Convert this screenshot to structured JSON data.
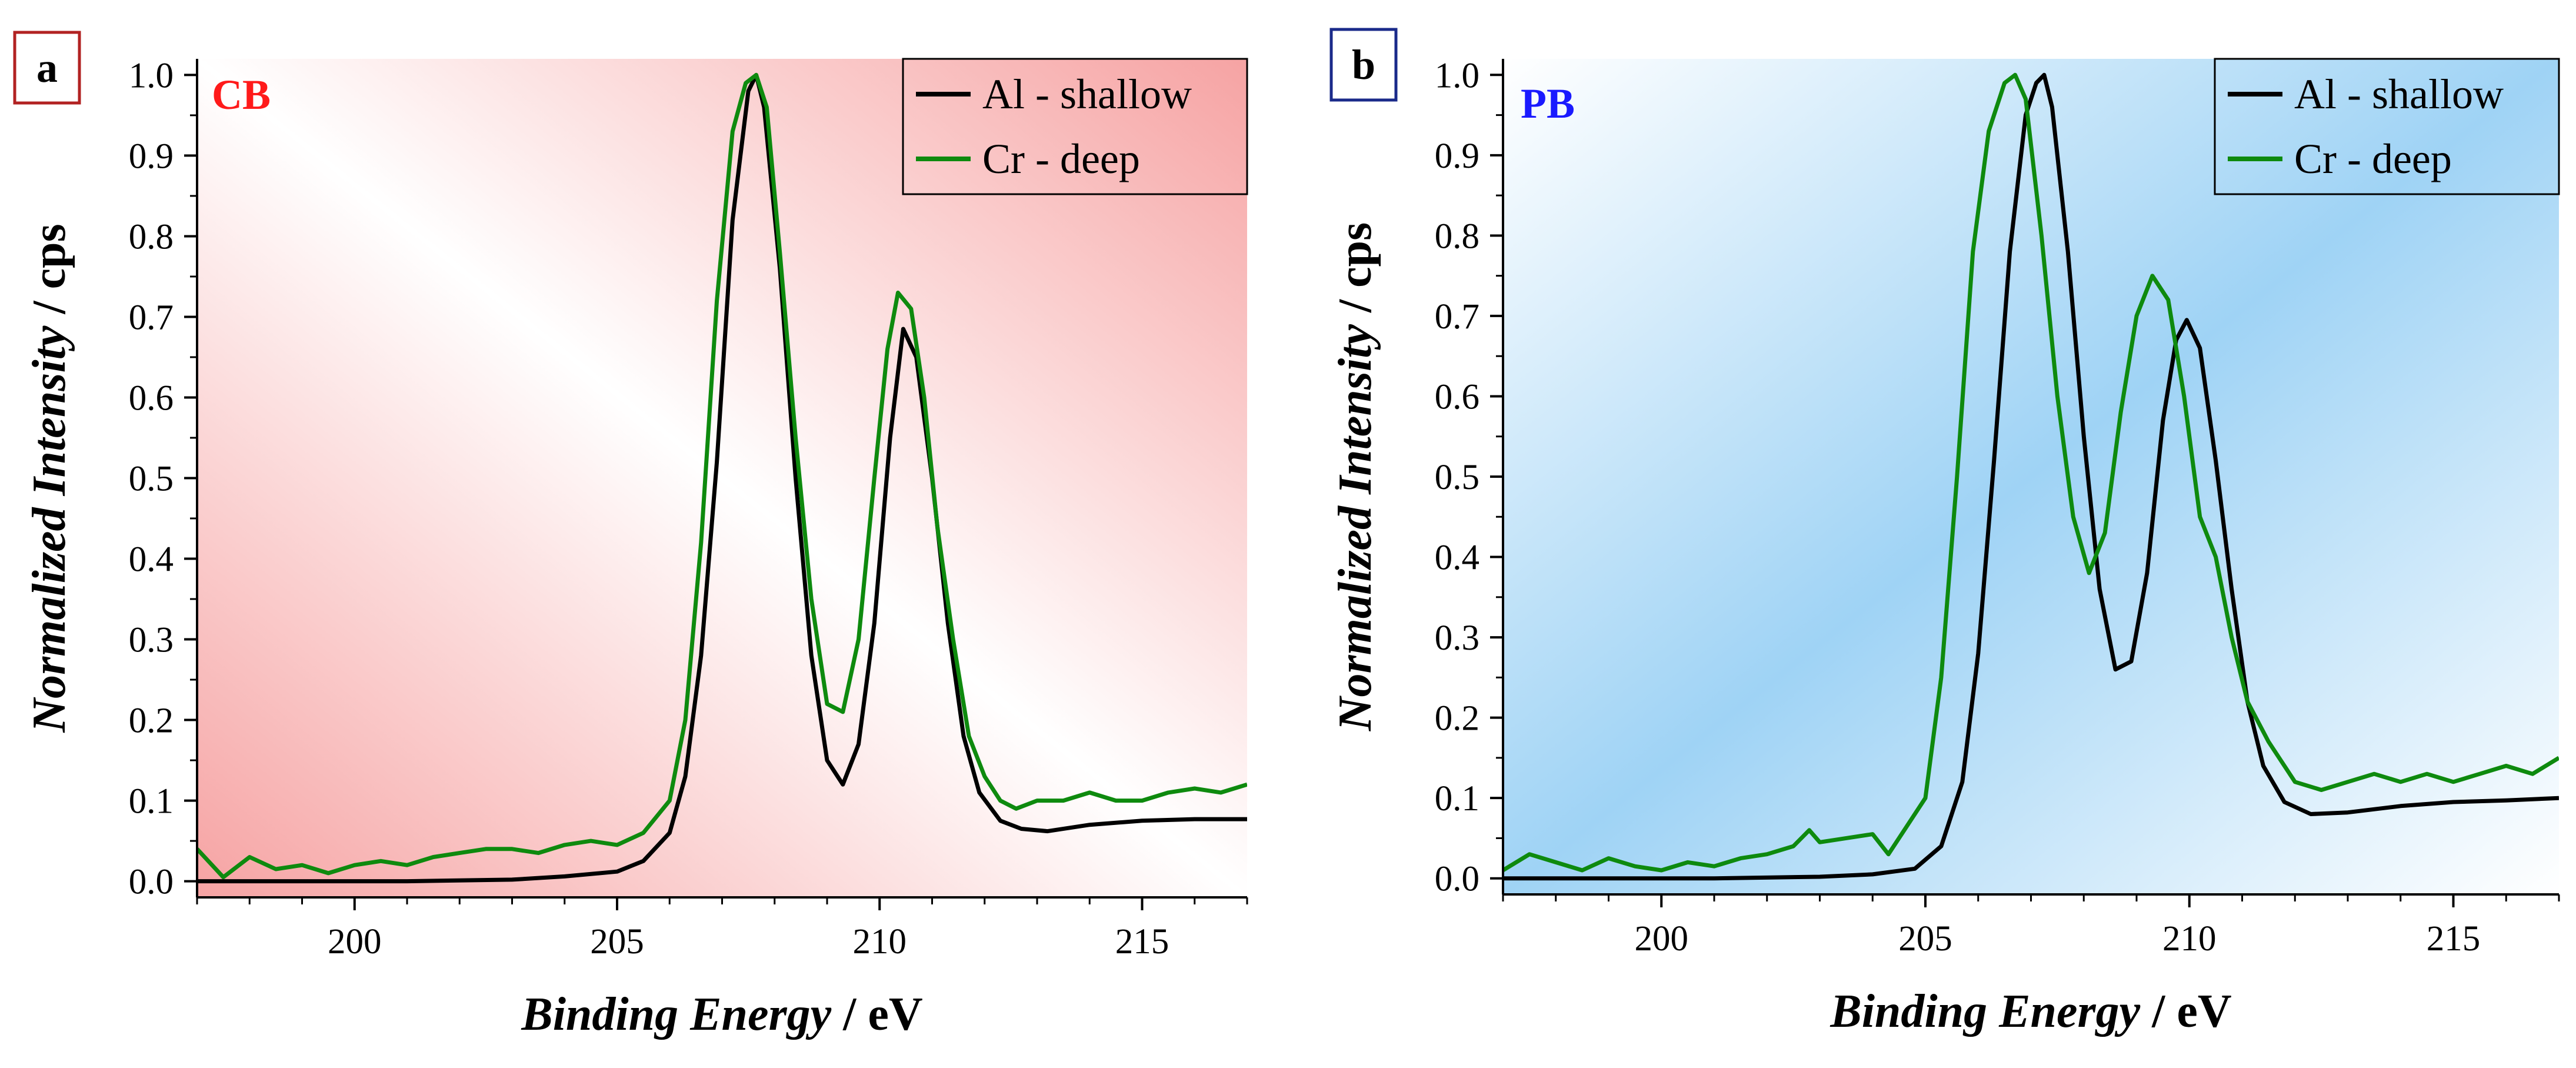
{
  "chart_data": [
    {
      "panel": "a",
      "tag": "CB",
      "tag_color": "#ff1a1a",
      "label_box_color": "#b22222",
      "background_tint": "#f6a3a3",
      "type": "line",
      "xlabel": "Binding Energy",
      "xunit": " / eV",
      "ylabel": "Normalized Intensity",
      "yunit": " / cps",
      "xlim": [
        197,
        217
      ],
      "ylim": [
        -0.02,
        1.02
      ],
      "xticks": [
        200,
        205,
        210,
        215
      ],
      "yticks": [
        0.0,
        0.1,
        0.2,
        0.3,
        0.4,
        0.5,
        0.6,
        0.7,
        0.8,
        0.9,
        1.0
      ],
      "ytick_labels": [
        "0.0",
        "0.1",
        "0.2",
        "0.3",
        "0.4",
        "0.5",
        "0.6",
        "0.7",
        "0.8",
        "0.9",
        "1.0"
      ],
      "legend_position": "top-right",
      "series": [
        {
          "name": "Al - shallow",
          "color": "#000000",
          "x": [
            197,
            199,
            201,
            203,
            204,
            205,
            205.5,
            206,
            206.3,
            206.6,
            206.9,
            207.2,
            207.5,
            207.65,
            207.8,
            208.1,
            208.4,
            208.7,
            209.0,
            209.3,
            209.6,
            209.9,
            210.2,
            210.45,
            210.7,
            211.0,
            211.3,
            211.6,
            211.9,
            212.3,
            212.7,
            213.2,
            214,
            215,
            216,
            217
          ],
          "y": [
            0.0,
            0.0,
            0.0,
            0.002,
            0.006,
            0.012,
            0.025,
            0.06,
            0.13,
            0.28,
            0.52,
            0.82,
            0.98,
            1.0,
            0.96,
            0.76,
            0.5,
            0.28,
            0.15,
            0.12,
            0.17,
            0.32,
            0.55,
            0.685,
            0.65,
            0.5,
            0.32,
            0.18,
            0.11,
            0.075,
            0.065,
            0.062,
            0.07,
            0.075,
            0.077,
            0.077
          ]
        },
        {
          "name": "Cr - deep",
          "color": "#0e8a0e",
          "x": [
            197,
            197.5,
            198,
            198.5,
            199,
            199.5,
            200,
            200.5,
            201,
            201.5,
            202,
            202.5,
            203,
            203.5,
            204,
            204.5,
            205,
            205.5,
            206,
            206.3,
            206.6,
            206.9,
            207.2,
            207.45,
            207.65,
            207.85,
            208.1,
            208.4,
            208.7,
            209.0,
            209.3,
            209.6,
            209.9,
            210.15,
            210.35,
            210.6,
            210.85,
            211.1,
            211.4,
            211.7,
            212.0,
            212.3,
            212.6,
            213.0,
            213.5,
            214,
            214.5,
            215,
            215.5,
            216,
            216.5,
            217
          ],
          "y": [
            0.04,
            0.005,
            0.03,
            0.015,
            0.02,
            0.01,
            0.02,
            0.025,
            0.02,
            0.03,
            0.035,
            0.04,
            0.04,
            0.035,
            0.045,
            0.05,
            0.045,
            0.06,
            0.1,
            0.2,
            0.42,
            0.72,
            0.93,
            0.99,
            1.0,
            0.96,
            0.78,
            0.55,
            0.35,
            0.22,
            0.21,
            0.3,
            0.5,
            0.66,
            0.73,
            0.71,
            0.6,
            0.44,
            0.3,
            0.18,
            0.13,
            0.1,
            0.09,
            0.1,
            0.1,
            0.11,
            0.1,
            0.1,
            0.11,
            0.115,
            0.11,
            0.12
          ]
        }
      ]
    },
    {
      "panel": "b",
      "tag": "PB",
      "tag_color": "#1a1aff",
      "label_box_color": "#1a2a8a",
      "background_tint": "#9fd3f5",
      "type": "line",
      "xlabel": "Binding Energy",
      "xunit": " / eV",
      "ylabel": "Normalized Intensity",
      "yunit": " / cps",
      "xlim": [
        197,
        217
      ],
      "ylim": [
        -0.02,
        1.02
      ],
      "xticks": [
        200,
        205,
        210,
        215
      ],
      "yticks": [
        0.0,
        0.1,
        0.2,
        0.3,
        0.4,
        0.5,
        0.6,
        0.7,
        0.8,
        0.9,
        1.0
      ],
      "ytick_labels": [
        "0.0",
        "0.1",
        "0.2",
        "0.3",
        "0.4",
        "0.5",
        "0.6",
        "0.7",
        "0.8",
        "0.9",
        "1.0"
      ],
      "legend_position": "top-right",
      "series": [
        {
          "name": "Al - shallow",
          "color": "#000000",
          "x": [
            197,
            199,
            201,
            203,
            204,
            204.8,
            205.3,
            205.7,
            206.0,
            206.3,
            206.6,
            206.9,
            207.1,
            207.25,
            207.4,
            207.7,
            208.0,
            208.3,
            208.6,
            208.9,
            209.2,
            209.5,
            209.75,
            209.95,
            210.2,
            210.5,
            210.8,
            211.1,
            211.4,
            211.8,
            212.3,
            213,
            214,
            215,
            216,
            217
          ],
          "y": [
            0.0,
            0.0,
            0.0,
            0.002,
            0.005,
            0.012,
            0.04,
            0.12,
            0.28,
            0.52,
            0.78,
            0.95,
            0.99,
            1.0,
            0.96,
            0.78,
            0.55,
            0.36,
            0.26,
            0.27,
            0.38,
            0.57,
            0.67,
            0.695,
            0.66,
            0.52,
            0.36,
            0.22,
            0.14,
            0.095,
            0.08,
            0.082,
            0.09,
            0.095,
            0.097,
            0.1
          ]
        },
        {
          "name": "Cr - deep",
          "color": "#0e8a0e",
          "x": [
            197,
            197.5,
            198,
            198.5,
            199,
            199.5,
            200,
            200.5,
            201,
            201.5,
            202,
            202.5,
            202.8,
            203,
            203.5,
            204,
            204.3,
            204.6,
            205.0,
            205.3,
            205.6,
            205.9,
            206.2,
            206.5,
            206.7,
            206.9,
            207.2,
            207.5,
            207.8,
            208.1,
            208.4,
            208.7,
            209.0,
            209.3,
            209.6,
            209.9,
            210.2,
            210.5,
            210.8,
            211.1,
            211.5,
            212,
            212.5,
            213,
            213.5,
            214,
            214.5,
            215,
            215.5,
            216,
            216.5,
            217
          ],
          "y": [
            0.01,
            0.03,
            0.02,
            0.01,
            0.025,
            0.015,
            0.01,
            0.02,
            0.015,
            0.025,
            0.03,
            0.04,
            0.06,
            0.045,
            0.05,
            0.055,
            0.03,
            0.06,
            0.1,
            0.25,
            0.5,
            0.78,
            0.93,
            0.99,
            1.0,
            0.97,
            0.8,
            0.6,
            0.45,
            0.38,
            0.43,
            0.58,
            0.7,
            0.75,
            0.72,
            0.6,
            0.45,
            0.4,
            0.3,
            0.22,
            0.17,
            0.12,
            0.11,
            0.12,
            0.13,
            0.12,
            0.13,
            0.12,
            0.13,
            0.14,
            0.13,
            0.15
          ]
        }
      ]
    }
  ]
}
